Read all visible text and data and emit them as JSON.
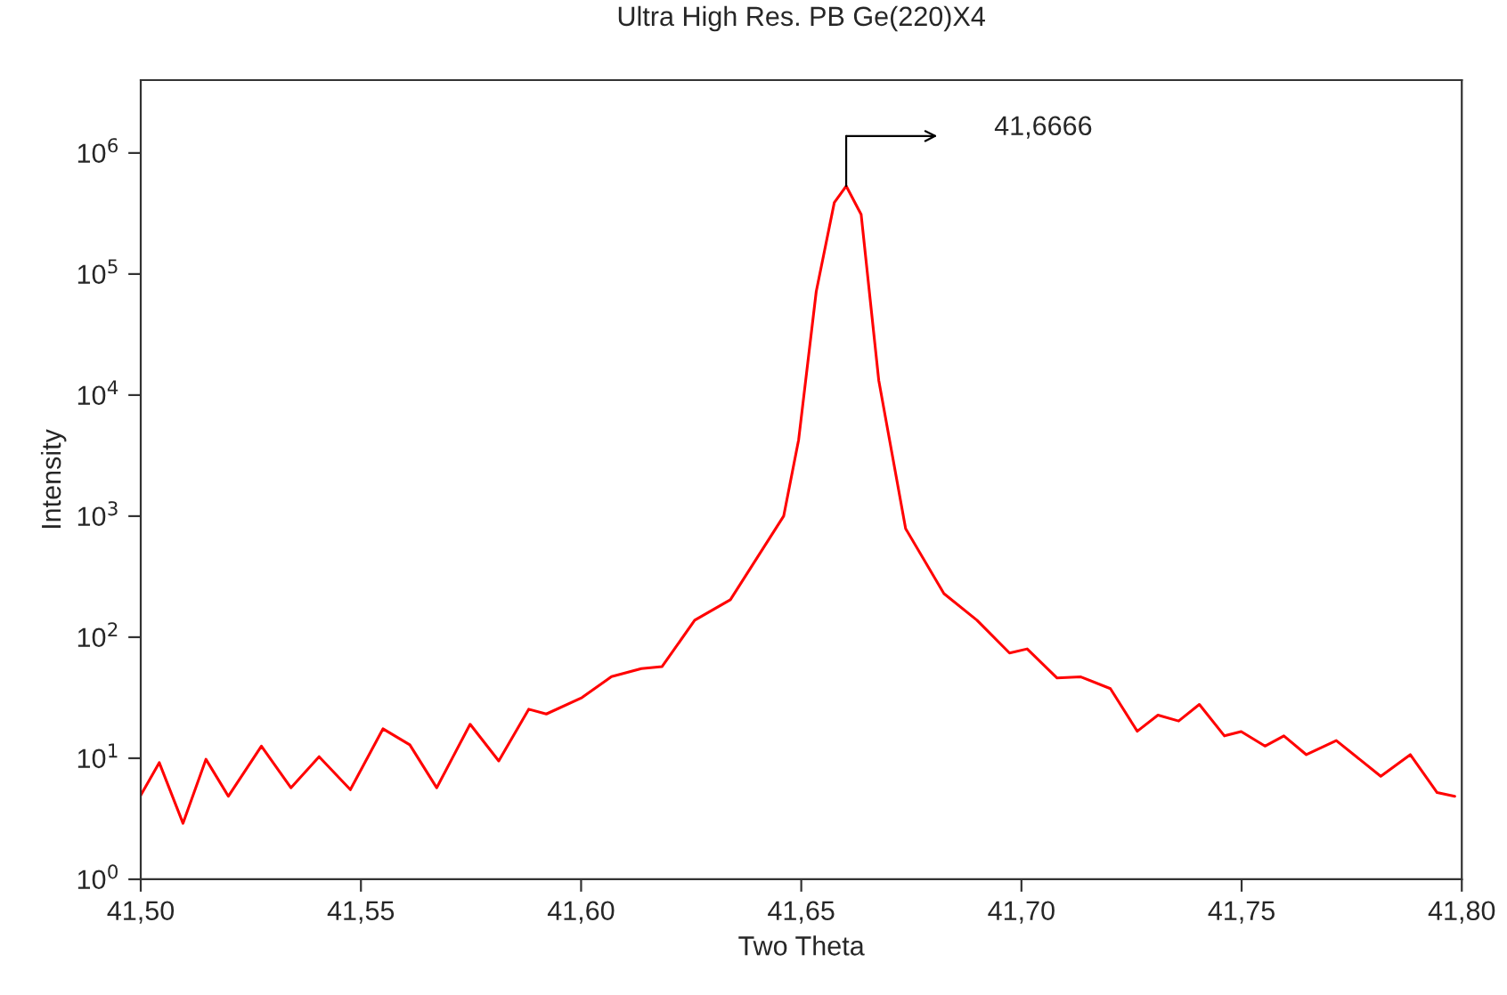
{
  "chart_data": {
    "type": "line",
    "title": "Ultra High Res. PB Ge(220)X4",
    "xlabel": "Two Theta",
    "ylabel": "Intensity",
    "log": "y",
    "xlim": [
      41.5,
      41.8
    ],
    "ylim": [
      1,
      4000000
    ],
    "xticks": [
      {
        "value": 41.5,
        "label": "41,50"
      },
      {
        "value": 41.55,
        "label": "41,55"
      },
      {
        "value": 41.6,
        "label": "41,60"
      },
      {
        "value": 41.65,
        "label": "41,65"
      },
      {
        "value": 41.7,
        "label": "41,70"
      },
      {
        "value": 41.75,
        "label": "41,75"
      },
      {
        "value": 41.8,
        "label": "41,80"
      }
    ],
    "yticks": [
      {
        "value": 1,
        "label": "10$^{0}$"
      },
      {
        "value": 10,
        "label": "10$^{1}$"
      },
      {
        "value": 100,
        "label": "10$^{2}$"
      },
      {
        "value": 1000,
        "label": "10$^{3}$"
      },
      {
        "value": 10000,
        "label": "10$^{4}$"
      },
      {
        "value": 100000,
        "label": "10$^{5}$"
      },
      {
        "value": 1000000,
        "label": "10$^{6}$"
      }
    ],
    "grid": false,
    "marker": "none",
    "line_style": "solid",
    "annotations": [
      "41,6666"
    ],
    "series": [
      {
        "color": "#ff0000",
        "x": [
          41.5,
          41.5042,
          41.5096,
          41.5148,
          41.5199,
          41.5274,
          41.5341,
          41.5405,
          41.5476,
          41.555,
          41.5611,
          41.5672,
          41.5748,
          41.5813,
          41.5881,
          41.5921,
          41.6002,
          41.6069,
          41.6137,
          41.6184,
          41.6258,
          41.6339,
          41.646,
          41.6494,
          41.6534,
          41.6575,
          41.6602,
          41.6636,
          41.6676,
          41.6737,
          41.6824,
          41.6899,
          41.6973,
          41.7013,
          41.7081,
          41.7135,
          41.7202,
          41.7263,
          41.731,
          41.7357,
          41.7404,
          41.7461,
          41.7499,
          41.7553,
          41.7596,
          41.7647,
          41.7715,
          41.7816,
          41.7883,
          41.7944,
          41.7984
        ],
        "values": [
          4.95,
          9.2,
          2.9,
          9.8,
          4.85,
          12.6,
          5.7,
          10.3,
          5.5,
          17.5,
          12.9,
          5.7,
          19.1,
          9.5,
          25.4,
          23.2,
          31.7,
          47.2,
          55,
          57.2,
          138,
          204,
          1000,
          4270,
          71800,
          389000,
          533000,
          310000,
          13200,
          789,
          229,
          138,
          74,
          80,
          46,
          47,
          37.6,
          16.7,
          22.7,
          20.3,
          27.8,
          15.3,
          16.6,
          12.6,
          15.3,
          10.7,
          14.0,
          7.1,
          10.7,
          5.2,
          4.85
        ]
      }
    ]
  }
}
